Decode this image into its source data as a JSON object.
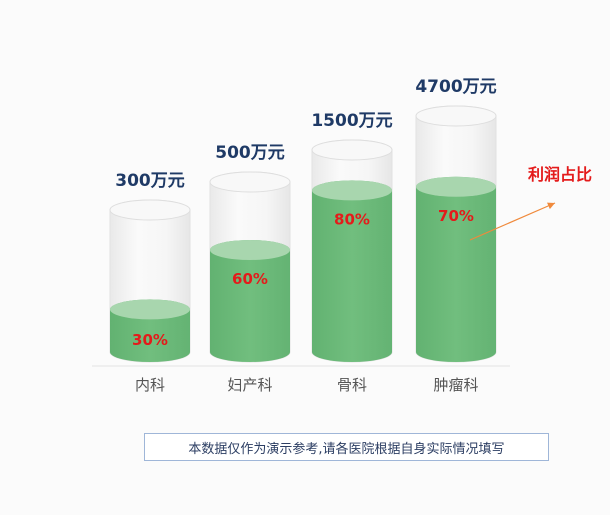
{
  "chart_data": {
    "type": "bar",
    "style": "glass-cylinder",
    "categories": [
      "内科",
      "妇产科",
      "骨科",
      "肿瘤科"
    ],
    "totals": [
      "300万元",
      "500万元",
      "1500万元",
      "4700万元"
    ],
    "series": [
      {
        "values": [
          30,
          60,
          80,
          70
        ],
        "labels": [
          "30%",
          "60%",
          "80%",
          "70%"
        ]
      }
    ],
    "annotation": "利润占比"
  },
  "footer": {
    "note": "本数据仅作为演示参考,请各医院根据自身实际情况填写"
  },
  "colors": {
    "fill": "#6cbb7a",
    "fill_top": "#a8d6ae",
    "glass": "#f1f1f1",
    "value_label": "#1f3a66",
    "percent_label": "#e41b1b",
    "category_label": "#555555",
    "arrow": "#f08a3c",
    "annotation": "#e41b1b"
  }
}
